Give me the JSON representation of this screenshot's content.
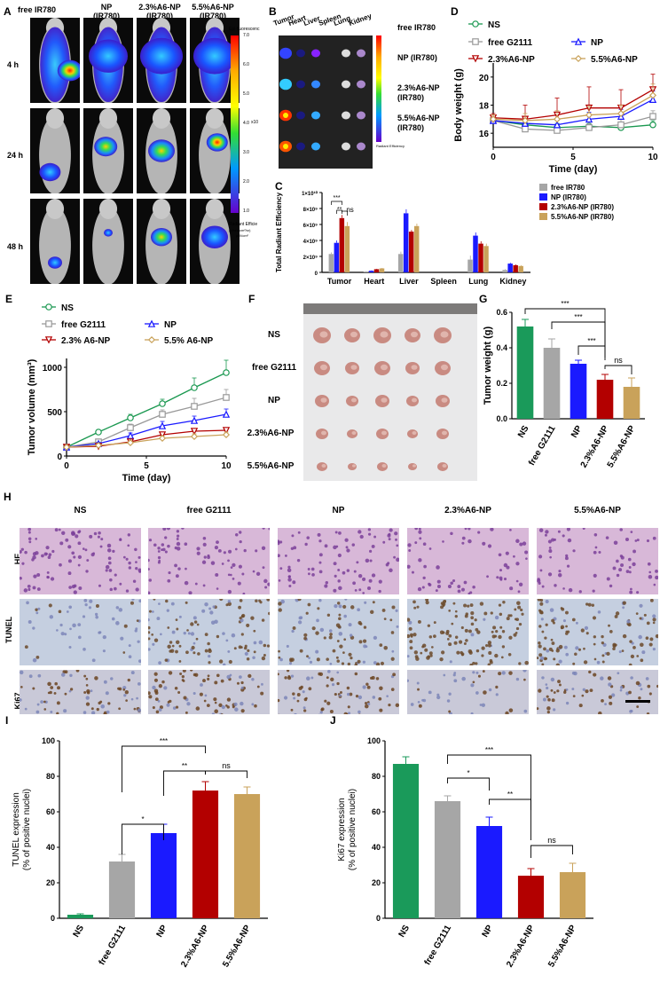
{
  "panels": {
    "A": {
      "label": "A",
      "cols": [
        "free IR780",
        "NP\n(IR780)",
        "2.3%A6-NP\n(IR780)",
        "5.5%A6-NP\n(IR780)"
      ],
      "rows": [
        "4 h",
        "24 h",
        "48 h"
      ],
      "colorbar_title": "Epi-fluorescenc",
      "colorbar_ticks": [
        "7.0",
        "6.0",
        "5.0",
        "4.0",
        "3.0",
        "2.0",
        "1.0"
      ],
      "colorbar_exp": "x10",
      "colorbar_unit1": "Radiant Efficie",
      "colorbar_unit2": "(p/sec/cm²/sr)",
      "colorbar_unit3": "μW/cm²"
    },
    "B": {
      "label": "B",
      "organs": [
        "Tumor",
        "Heart",
        "Liver",
        "Spleen",
        "Lung",
        "Kidney"
      ],
      "rows": [
        "free IR780",
        "NP (IR780)",
        "2.3%A6-NP\n(IR780)",
        "5.5%A6-NP\n(IR780)"
      ],
      "legend_small": "Radiant Efficiency"
    },
    "C": {
      "label": "C"
    },
    "D": {
      "label": "D"
    },
    "E": {
      "label": "E"
    },
    "F": {
      "label": "F",
      "rows": [
        "NS",
        "free G2111",
        "NP",
        "2.3%A6-NP",
        "5.5%A6-NP"
      ]
    },
    "G": {
      "label": "G"
    },
    "H": {
      "label": "H",
      "cols": [
        "NS",
        "free G2111",
        "NP",
        "2.3%A6-NP",
        "5.5%A6-NP"
      ],
      "rows": [
        "HE",
        "TUNEL",
        "Ki67"
      ]
    },
    "I": {
      "label": "I"
    },
    "J": {
      "label": "J"
    }
  },
  "chart_data": [
    {
      "id": "C",
      "type": "bar",
      "ylabel": "Total  Radiant Efficiency",
      "yticks": [
        "0",
        "2×10⁹",
        "4×10⁹",
        "6×10⁹",
        "8×10⁹",
        "1×10¹⁰"
      ],
      "ylim": [
        0,
        10
      ],
      "categories": [
        "Tumor",
        "Heart",
        "Liver",
        "Spleen",
        "Lung",
        "Kidney"
      ],
      "series": [
        {
          "name": "free IR780",
          "color": "#a6a6a6",
          "values": [
            2.3,
            0.1,
            2.3,
            0.0,
            1.6,
            0.3
          ],
          "err": [
            0.2,
            0.05,
            0.3,
            0,
            0.5,
            0.1
          ]
        },
        {
          "name": "NP (IR780)",
          "color": "#1a1aff",
          "values": [
            3.7,
            0.2,
            7.4,
            0.0,
            4.6,
            1.1
          ],
          "err": [
            0.3,
            0.05,
            0.5,
            0,
            0.4,
            0.1
          ]
        },
        {
          "name": "2.3%A6-NP (IR780)",
          "color": "#b30000",
          "values": [
            6.8,
            0.4,
            5.1,
            0.0,
            3.6,
            0.9
          ],
          "err": [
            0.4,
            0.05,
            0.2,
            0,
            0.3,
            0.1
          ]
        },
        {
          "name": "5.5%A6-NP (IR780)",
          "color": "#c9a25a",
          "values": [
            5.8,
            0.5,
            5.8,
            0.0,
            3.3,
            0.8
          ],
          "err": [
            0.5,
            0.05,
            0.3,
            0,
            0.3,
            0.1
          ]
        }
      ],
      "annotations": [
        "***",
        "**",
        "ns"
      ]
    },
    {
      "id": "D",
      "type": "line",
      "xlabel": "Time (day)",
      "ylabel": "Body weight (g)",
      "xticks": [
        0,
        5,
        10
      ],
      "yticks": [
        16,
        18,
        20
      ],
      "xlim": [
        0,
        10
      ],
      "ylim": [
        15,
        21
      ],
      "x": [
        0,
        2,
        4,
        6,
        8,
        10
      ],
      "series": [
        {
          "name": "NS",
          "color": "#1a9850",
          "marker": "circle",
          "values": [
            16.9,
            16.6,
            16.4,
            16.5,
            16.4,
            16.6
          ],
          "err": [
            0.2,
            0.3,
            0.3,
            0.3,
            0.3,
            0.3
          ]
        },
        {
          "name": "free G2111",
          "color": "#999999",
          "marker": "square",
          "values": [
            16.9,
            16.3,
            16.2,
            16.4,
            16.6,
            17.2
          ],
          "err": [
            0.2,
            0.3,
            0.3,
            0.3,
            0.4,
            0.4
          ]
        },
        {
          "name": "NP",
          "color": "#1a1aff",
          "marker": "triangle",
          "values": [
            16.9,
            16.7,
            16.6,
            17.0,
            17.2,
            18.4
          ],
          "err": [
            0.3,
            0.4,
            0.4,
            0.5,
            0.5,
            0.6
          ]
        },
        {
          "name": "2.3%A6-NP",
          "color": "#b30000",
          "marker": "invtriangle",
          "values": [
            17.1,
            17.0,
            17.3,
            17.8,
            17.8,
            19.1
          ],
          "err": [
            0.3,
            1.0,
            1.2,
            1.5,
            1.3,
            1.1
          ]
        },
        {
          "name": "5.5%A6-NP",
          "color": "#c9a25a",
          "marker": "diamond",
          "values": [
            17.0,
            16.9,
            17.0,
            17.3,
            17.4,
            18.7
          ],
          "err": [
            0.3,
            0.5,
            0.6,
            0.6,
            0.6,
            0.8
          ]
        }
      ]
    },
    {
      "id": "E",
      "type": "line",
      "xlabel": "Time (day)",
      "ylabel": "Tumor volume (mm³)",
      "xticks": [
        0,
        5,
        10
      ],
      "yticks": [
        0,
        500,
        1000
      ],
      "xlim": [
        0,
        10
      ],
      "ylim": [
        0,
        1100
      ],
      "x": [
        0,
        2,
        4,
        6,
        8,
        10
      ],
      "series": [
        {
          "name": "NS",
          "color": "#1a9850",
          "marker": "circle",
          "values": [
            100,
            270,
            430,
            590,
            770,
            940
          ],
          "err": [
            10,
            25,
            40,
            50,
            110,
            140
          ]
        },
        {
          "name": "free G2111",
          "color": "#999999",
          "marker": "square",
          "values": [
            100,
            160,
            320,
            470,
            560,
            660
          ],
          "err": [
            10,
            20,
            40,
            50,
            90,
            90
          ]
        },
        {
          "name": "NP",
          "color": "#1a1aff",
          "marker": "triangle",
          "values": [
            100,
            140,
            230,
            340,
            400,
            470
          ],
          "err": [
            10,
            15,
            30,
            50,
            50,
            60
          ]
        },
        {
          "name": "2.3% A6-NP",
          "color": "#b30000",
          "marker": "invtriangle",
          "values": [
            100,
            110,
            160,
            240,
            280,
            290
          ],
          "err": [
            10,
            15,
            20,
            30,
            30,
            30
          ]
        },
        {
          "name": "5.5% A6-NP",
          "color": "#c9a25a",
          "marker": "diamond",
          "values": [
            100,
            120,
            150,
            200,
            220,
            240
          ],
          "err": [
            10,
            15,
            20,
            25,
            30,
            30
          ]
        }
      ]
    },
    {
      "id": "G",
      "type": "bar",
      "ylabel": "Tumor weight (g)",
      "yticks": [
        "0.0",
        "0.2",
        "0.4",
        "0.6"
      ],
      "ylim": [
        0,
        0.6
      ],
      "categories": [
        "NS",
        "free G2111",
        "NP",
        "2.3%A6-NP",
        "5.5%A6-NP"
      ],
      "colors": [
        "#1a9a5a",
        "#a6a6a6",
        "#1a1aff",
        "#b30000",
        "#c9a25a"
      ],
      "values": [
        0.52,
        0.4,
        0.31,
        0.22,
        0.18
      ],
      "err": [
        0.04,
        0.05,
        0.02,
        0.03,
        0.05
      ],
      "annotations": [
        "***",
        "***",
        "***",
        "ns"
      ]
    },
    {
      "id": "I",
      "type": "bar",
      "ylabel": "TUNEL expression\n(% of positive nuclei)",
      "yticks": [
        "0",
        "20",
        "40",
        "60",
        "80",
        "100"
      ],
      "ylim": [
        0,
        100
      ],
      "categories": [
        "NS",
        "free G2111",
        "NP",
        "2.3%A6-NP",
        "5.5%A6-NP"
      ],
      "colors": [
        "#1a9a5a",
        "#a6a6a6",
        "#1a1aff",
        "#b30000",
        "#c9a25a"
      ],
      "values": [
        2,
        32,
        48,
        72,
        70
      ],
      "err": [
        0.5,
        4,
        5,
        5,
        4
      ],
      "annotations": [
        "***",
        "**",
        "ns",
        "*"
      ]
    },
    {
      "id": "J",
      "type": "bar",
      "ylabel": "Ki67 expression\n(% of positive nuclei)",
      "yticks": [
        "0",
        "20",
        "40",
        "60",
        "80",
        "100"
      ],
      "ylim": [
        0,
        100
      ],
      "categories": [
        "NS",
        "free G2111",
        "NP",
        "2.3%A6-NP",
        "5.5%A6-NP"
      ],
      "colors": [
        "#1a9a5a",
        "#a6a6a6",
        "#1a1aff",
        "#b30000",
        "#c9a25a"
      ],
      "values": [
        87,
        66,
        52,
        24,
        26
      ],
      "err": [
        4,
        3,
        5,
        4,
        5
      ],
      "annotations": [
        "***",
        "*",
        "**",
        "ns"
      ]
    }
  ]
}
